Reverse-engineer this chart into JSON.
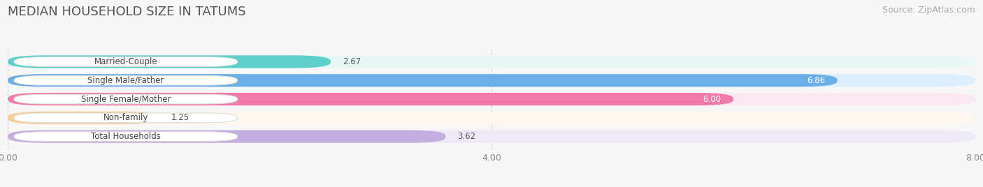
{
  "title": "MEDIAN HOUSEHOLD SIZE IN TATUMS",
  "source": "Source: ZipAtlas.com",
  "categories": [
    "Married-Couple",
    "Single Male/Father",
    "Single Female/Mother",
    "Non-family",
    "Total Households"
  ],
  "values": [
    2.67,
    6.86,
    6.0,
    1.25,
    3.62
  ],
  "bar_colors": [
    "#5ecfc9",
    "#6baee8",
    "#f07aaa",
    "#f5ce98",
    "#c4aee0"
  ],
  "bg_colors": [
    "#e8f8f7",
    "#ddeeff",
    "#fce8f2",
    "#fef7ed",
    "#eee8f7"
  ],
  "value_inside": [
    false,
    true,
    true,
    false,
    false
  ],
  "xlim": [
    0,
    8.0
  ],
  "xticks": [
    0.0,
    4.0,
    8.0
  ],
  "xtick_labels": [
    "0.00",
    "4.00",
    "8.00"
  ],
  "title_fontsize": 13,
  "source_fontsize": 9,
  "background_color": "#f7f7f7"
}
